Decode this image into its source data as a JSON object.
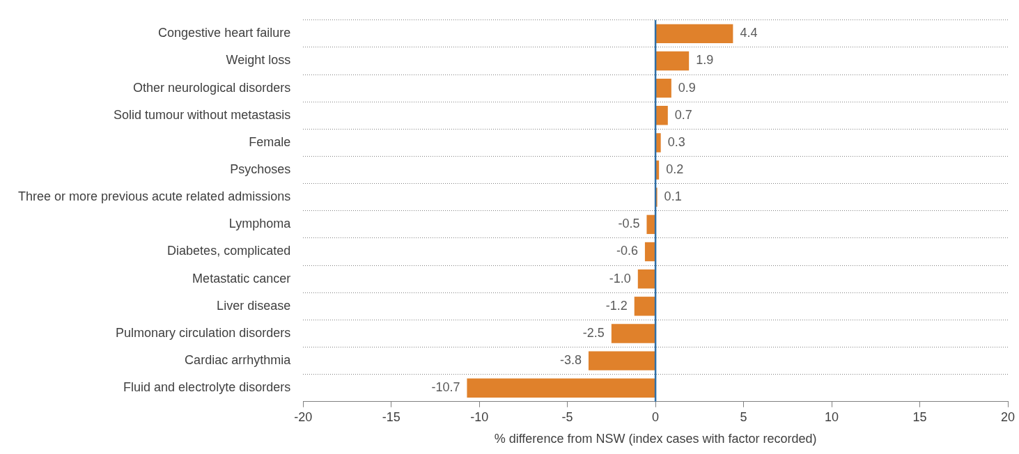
{
  "chart_data": {
    "type": "bar",
    "orientation": "horizontal",
    "xlabel": "% difference from NSW (index cases with factor recorded)",
    "categories": [
      "Congestive heart failure",
      "Weight loss",
      "Other neurological disorders",
      "Solid tumour without metastasis",
      "Female",
      "Psychoses",
      "Three or more previous acute related admissions",
      "Lymphoma",
      "Diabetes, complicated",
      "Metastatic cancer",
      "Liver disease",
      "Pulmonary circulation disorders",
      "Cardiac arrhythmia",
      "Fluid and electrolyte disorders"
    ],
    "values": [
      4.4,
      1.9,
      0.9,
      0.7,
      0.3,
      0.2,
      0.1,
      -0.5,
      -0.6,
      -1.0,
      -1.2,
      -2.5,
      -3.8,
      -10.7
    ],
    "value_labels": [
      "4.4",
      "1.9",
      "0.9",
      "0.7",
      "0.3",
      "0.2",
      "0.1",
      "-0.5",
      "-0.6",
      "-1.0",
      "-1.2",
      "-2.5",
      "-3.8",
      "-10.7"
    ],
    "color": "#e0812b",
    "xlim": [
      -20,
      20
    ],
    "xticks": [
      -20,
      -15,
      -10,
      -5,
      0,
      5,
      10,
      15,
      20
    ],
    "ref_lines": [
      {
        "axis": "x",
        "value": 0,
        "color": "#2e6fa8"
      }
    ],
    "grid": "y",
    "legend": false
  }
}
